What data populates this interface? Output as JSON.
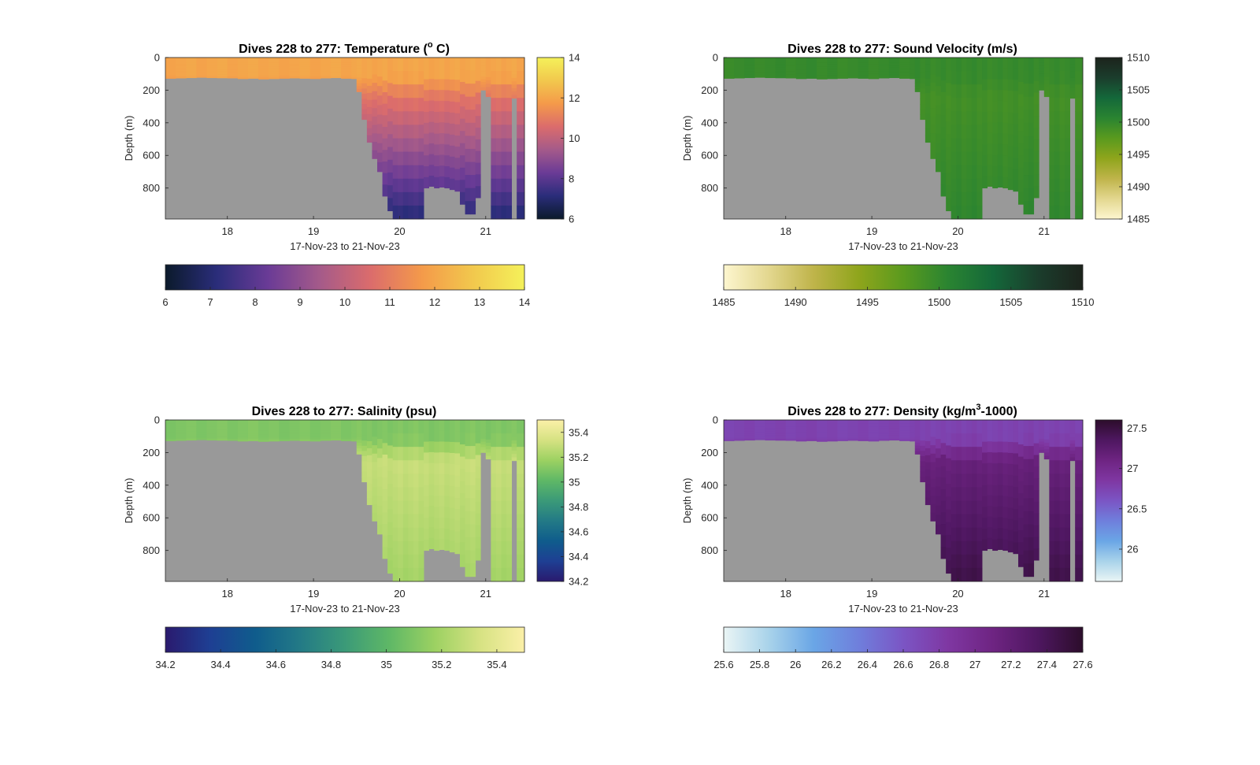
{
  "figure": {
    "background": "#ffffff",
    "missing_color": "#999999"
  },
  "chart_data": [
    {
      "id": "temperature",
      "type": "heatmap",
      "title": "Dives 228 to 277: Temperature (",
      "title_sup": "o",
      "title_after": " C)",
      "xlabel": "17-Nov-23 to 21-Nov-23",
      "ylabel": "Depth (m)",
      "xlim": [
        17.28,
        21.45
      ],
      "ylim": [
        0,
        990
      ],
      "xticks": [
        18,
        19,
        20,
        21
      ],
      "xtick_labels": [
        "18",
        "19",
        "20",
        "21"
      ],
      "yticks": [
        0,
        200,
        400,
        600,
        800
      ],
      "ytick_labels": [
        "0",
        "200",
        "400",
        "600",
        "800"
      ],
      "colormap": [
        "#0b1a2b",
        "#2a2d7a",
        "#6a3b96",
        "#a45a8a",
        "#db6c6c",
        "#f49a4a",
        "#f2c84d",
        "#f4f15a"
      ],
      "clim": [
        6,
        14
      ],
      "colorbar_vertical_ticks": [
        6,
        8,
        10,
        12,
        14
      ],
      "colorbar_vertical_labels": [
        "6",
        "8",
        "10",
        "12",
        "14"
      ],
      "colorbar_horizontal_ticks": [
        6,
        7,
        8,
        9,
        10,
        11,
        12,
        13,
        14
      ],
      "colorbar_horizontal_labels": [
        "6",
        "7",
        "8",
        "9",
        "10",
        "11",
        "12",
        "13",
        "14"
      ],
      "surface_value": 12.0,
      "mid_value": 10.8,
      "deep_value": 7.2,
      "dive_days": [
        17.28,
        17.4,
        17.52,
        17.64,
        17.76,
        17.88,
        18.0,
        18.12,
        18.24,
        18.36,
        18.48,
        18.6,
        18.72,
        18.84,
        18.96,
        19.08,
        19.2,
        19.32,
        19.44,
        19.5,
        19.56,
        19.62,
        19.68,
        19.74,
        19.8,
        19.86,
        19.92,
        19.98,
        20.04,
        20.1,
        20.16,
        20.22,
        20.28,
        20.34,
        20.4,
        20.46,
        20.52,
        20.58,
        20.64,
        20.7,
        20.76,
        20.82,
        20.88,
        20.94,
        21.0,
        21.06,
        21.12,
        21.18,
        21.24,
        21.3,
        21.36
      ],
      "dive_max_depth": [
        128,
        126,
        124,
        122,
        124,
        125,
        126,
        130,
        128,
        132,
        130,
        128,
        126,
        128,
        130,
        126,
        124,
        128,
        130,
        210,
        380,
        520,
        620,
        700,
        850,
        940,
        990,
        990,
        990,
        990,
        990,
        990,
        800,
        790,
        800,
        795,
        800,
        810,
        820,
        900,
        960,
        960,
        860,
        200,
        240,
        990,
        990,
        990,
        990,
        250,
        990
      ]
    },
    {
      "id": "sound-velocity",
      "type": "heatmap",
      "title": "Dives 228 to 277: Sound Velocity (m/s)",
      "xlabel": "17-Nov-23 to 21-Nov-23",
      "ylabel": "Depth (m)",
      "xlim": [
        17.28,
        21.45
      ],
      "ylim": [
        0,
        990
      ],
      "xticks": [
        18,
        19,
        20,
        21
      ],
      "xtick_labels": [
        "18",
        "19",
        "20",
        "21"
      ],
      "yticks": [
        0,
        200,
        400,
        600,
        800
      ],
      "ytick_labels": [
        "0",
        "200",
        "400",
        "600",
        "800"
      ],
      "colormap": [
        "#fdf6cf",
        "#e3d78f",
        "#bfb44a",
        "#8fa51c",
        "#5a9a1e",
        "#2a8431",
        "#14683a",
        "#1b3d2c",
        "#1c231c"
      ],
      "clim": [
        1485,
        1510
      ],
      "colorbar_vertical_ticks": [
        1485,
        1490,
        1495,
        1500,
        1505,
        1510
      ],
      "colorbar_vertical_labels": [
        "1485",
        "1490",
        "1495",
        "1500",
        "1505",
        "1510"
      ],
      "colorbar_horizontal_ticks": [
        1485,
        1490,
        1495,
        1500,
        1505,
        1510
      ],
      "colorbar_horizontal_labels": [
        "1485",
        "1490",
        "1495",
        "1500",
        "1505",
        "1510"
      ],
      "surface_value": 1499.8,
      "mid_value": 1499.0,
      "deep_value": 1500.2
    },
    {
      "id": "salinity",
      "type": "heatmap",
      "title": "Dives 228 to 277: Salinity (psu)",
      "xlabel": "17-Nov-23 to 21-Nov-23",
      "ylabel": "Depth (m)",
      "xlim": [
        17.28,
        21.45
      ],
      "ylim": [
        0,
        990
      ],
      "xticks": [
        18,
        19,
        20,
        21
      ],
      "xtick_labels": [
        "18",
        "19",
        "20",
        "21"
      ],
      "yticks": [
        0,
        200,
        400,
        600,
        800
      ],
      "ytick_labels": [
        "0",
        "200",
        "400",
        "600",
        "800"
      ],
      "colormap": [
        "#2a1a6e",
        "#1e3f93",
        "#0f5c8c",
        "#237a86",
        "#3b9a78",
        "#5fb866",
        "#9cd162",
        "#d6e282",
        "#fbf0a8"
      ],
      "clim": [
        34.2,
        35.5
      ],
      "colorbar_vertical_ticks": [
        34.2,
        34.4,
        34.6,
        34.8,
        35,
        35.2,
        35.4
      ],
      "colorbar_vertical_labels": [
        "34.2",
        "34.4",
        "34.6",
        "34.8",
        "35",
        "35.2",
        "35.4"
      ],
      "colorbar_horizontal_ticks": [
        34.2,
        34.4,
        34.6,
        34.8,
        35,
        35.2,
        35.4
      ],
      "colorbar_horizontal_labels": [
        "34.2",
        "34.4",
        "34.6",
        "34.8",
        "35",
        "35.2",
        "35.4"
      ],
      "surface_value": 35.1,
      "mid_value": 35.3,
      "deep_value": 35.2
    },
    {
      "id": "density",
      "type": "heatmap",
      "title": "Dives 228 to 277: Density (kg/m",
      "title_sup": "3",
      "title_after": "-1000)",
      "xlabel": "17-Nov-23 to 21-Nov-23",
      "ylabel": "Depth (m)",
      "xlim": [
        17.28,
        21.45
      ],
      "ylim": [
        0,
        990
      ],
      "xticks": [
        18,
        19,
        20,
        21
      ],
      "xtick_labels": [
        "18",
        "19",
        "20",
        "21"
      ],
      "yticks": [
        0,
        200,
        400,
        600,
        800
      ],
      "ytick_labels": [
        "0",
        "200",
        "400",
        "600",
        "800"
      ],
      "colormap": [
        "#eaf5f5",
        "#a9d3ea",
        "#6aa6e6",
        "#6f7fdc",
        "#7b55c4",
        "#7f37a2",
        "#6e2482",
        "#4e1760",
        "#2c0d2b"
      ],
      "clim": [
        25.6,
        27.6
      ],
      "colorbar_vertical_ticks": [
        26,
        26.5,
        27,
        27.5
      ],
      "colorbar_vertical_labels": [
        "26",
        "26.5",
        "27",
        "27.5"
      ],
      "colorbar_horizontal_ticks": [
        25.6,
        25.8,
        26,
        26.2,
        26.4,
        26.6,
        26.8,
        27,
        27.2,
        27.4,
        27.6
      ],
      "colorbar_horizontal_labels": [
        "25.6",
        "25.8",
        "26",
        "26.2",
        "26.4",
        "26.6",
        "26.8",
        "27",
        "27.2",
        "27.4",
        "27.6"
      ],
      "surface_value": 26.75,
      "mid_value": 27.15,
      "deep_value": 27.45
    }
  ]
}
